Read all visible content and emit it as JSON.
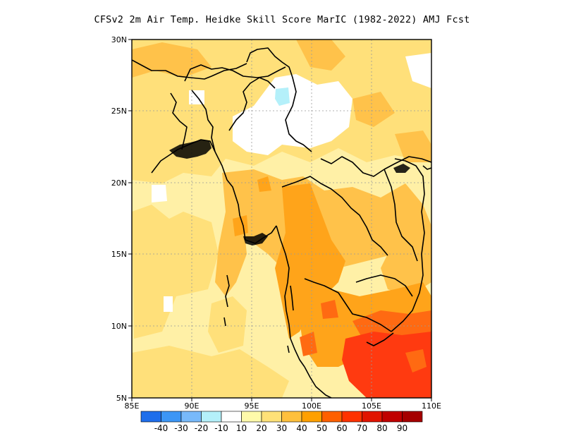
{
  "title": "CFSv2  2m Air Temp. Heidke Skill Score MarIC (1982-2022) AMJ Fcst",
  "map": {
    "lon_range": [
      85,
      110
    ],
    "lat_range": [
      5,
      30
    ],
    "x_ticks": [
      "85E",
      "90E",
      "95E",
      "100E",
      "105E",
      "110E"
    ],
    "y_ticks": [
      "5N",
      "10N",
      "15N",
      "20N",
      "25N",
      "30N"
    ],
    "grid": "dotted"
  },
  "colorbar": {
    "labels": [
      "-40",
      "-30",
      "-20",
      "-10",
      "10",
      "20",
      "30",
      "40",
      "50",
      "60",
      "70",
      "80",
      "90"
    ],
    "colors": [
      "#1e6eeb",
      "#3c96f5",
      "#78b9fa",
      "#b4f0fa",
      "#ffffff",
      "#fffaaa",
      "#ffe178",
      "#ffc03c",
      "#ffa000",
      "#ff6000",
      "#ff3200",
      "#e11400",
      "#c00000",
      "#a50000"
    ]
  },
  "fill_colors": {
    "ocean": "#fff0a6",
    "land_main": "#ffe07a",
    "warm": "#ffc24a",
    "hot": "#ffa41a",
    "very_hot": "#ff6a12",
    "extreme": "#ff3a10",
    "none": "#ffffff",
    "neg": "#b4f0fa"
  }
}
